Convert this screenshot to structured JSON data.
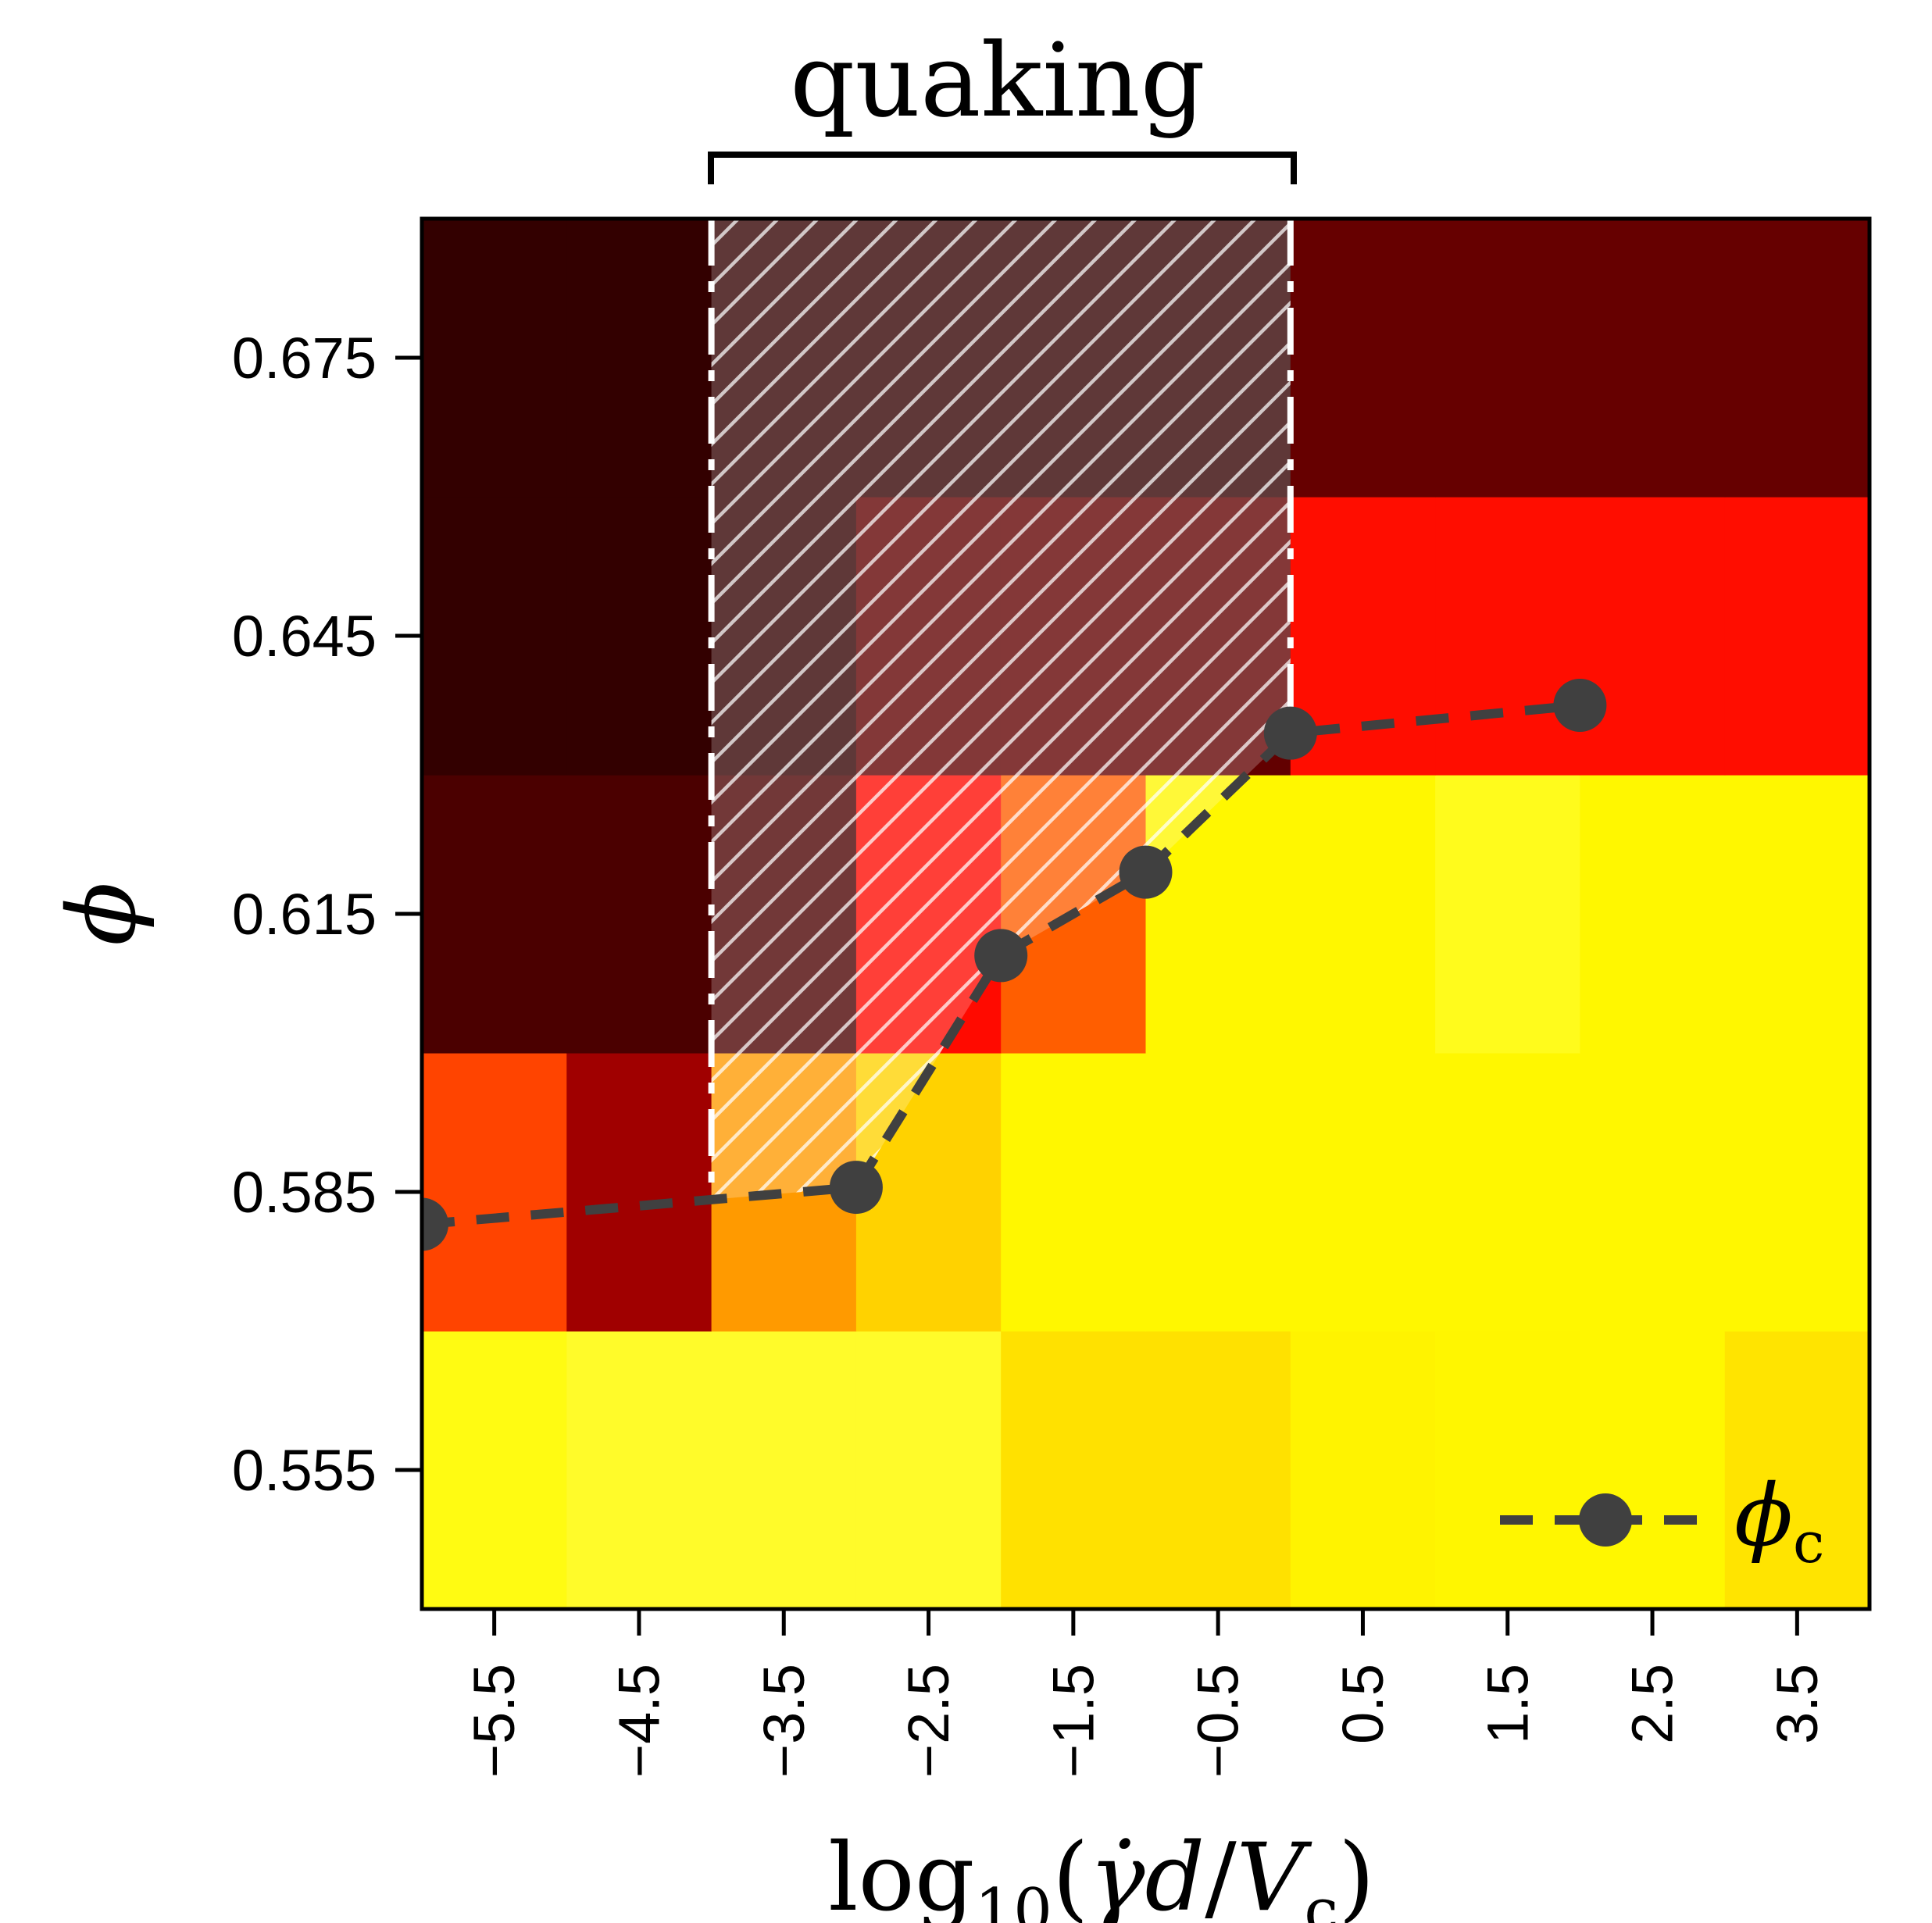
{
  "chart_data": {
    "type": "heatmap",
    "title": "quaking",
    "xlabel": {
      "base": "log",
      "sub": "10",
      "open": "(",
      "gdot": "γ̇",
      "d": "d",
      "slash": "/",
      "V": "V",
      "vsub": "c",
      "close": ")"
    },
    "ylabel": "ϕ",
    "x_tick_labels": [
      "−5.5",
      "−4.5",
      "−3.5",
      "−2.5",
      "−1.5",
      "−0.5",
      "0.5",
      "1.5",
      "2.5",
      "3.5"
    ],
    "x_tick_values": [
      -5.5,
      -4.5,
      -3.5,
      -2.5,
      -1.5,
      -0.5,
      0.5,
      1.5,
      2.5,
      3.5
    ],
    "y_tick_labels": [
      "0.675",
      "0.645",
      "0.615",
      "0.585",
      "0.555"
    ],
    "y_tick_values": [
      0.675,
      0.645,
      0.615,
      0.585,
      0.555
    ],
    "xlim": [
      -6.0,
      4.0
    ],
    "ylim": [
      0.54,
      0.69
    ],
    "x_bin_edges": [
      -6,
      -5,
      -4,
      -3,
      -2,
      -1,
      0,
      1,
      2,
      3,
      4
    ],
    "y_bin_edges": [
      0.54,
      0.57,
      0.6,
      0.63,
      0.66,
      0.69
    ],
    "colormap": "hot",
    "cells": [
      [
        "#fffb12",
        "#fffb2a",
        "#fffb2a",
        "#fffb2a",
        "#ffe100",
        "#ffe100",
        "#fff300",
        "#fff600",
        "#fff700",
        "#ffe400"
      ],
      [
        "#ff4400",
        "#a00000",
        "#ff9a00",
        "#ffd200",
        "#fff700",
        "#fff700",
        "#fff700",
        "#fff700",
        "#fff700",
        "#fff700"
      ],
      [
        "#4b0000",
        "#4b0000",
        "#4b0000",
        "#ff0a00",
        "#ff5e00",
        "#fff700",
        "#fff700",
        "#fffb1c",
        "#fff700",
        "#fff700"
      ],
      [
        "#330000",
        "#330000",
        "#330000",
        "#600000",
        "#620000",
        "#620000",
        "#ff0d00",
        "#ff0d00",
        "#ff0d00",
        "#ff0d00"
      ],
      [
        "#330000",
        "#330000",
        "#330000",
        "#330000",
        "#330000",
        "#330000",
        "#660000",
        "#660000",
        "#660000",
        "#660000"
      ]
    ],
    "series": [
      {
        "name": "ϕ",
        "name_sub": "c",
        "x": [
          -6.0,
          -3.0,
          -2.0,
          -1.0,
          0.0,
          2.0
        ],
        "y": [
          0.5815,
          0.5855,
          0.6105,
          0.6195,
          0.6345,
          0.6375
        ],
        "color": "#404040",
        "linestyle": "dashed",
        "marker": "circle"
      }
    ],
    "quaking_region": {
      "x": [
        -4.0,
        0.0
      ]
    },
    "legend": "bottom-right"
  }
}
